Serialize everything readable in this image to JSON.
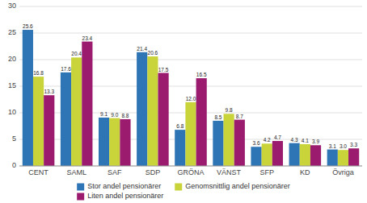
{
  "chart_data": {
    "type": "bar",
    "categories": [
      "CENT",
      "SAML",
      "SAF",
      "SDP",
      "GRÖNA",
      "VÄNST",
      "SFP",
      "KD",
      "Övriga"
    ],
    "series": [
      {
        "name": "Stor andel pensionärer",
        "color": "#2E75B6",
        "values": [
          25.6,
          17.6,
          9.1,
          21.4,
          6.8,
          8.5,
          3.6,
          4.3,
          3.1
        ],
        "value_labels": [
          "25.6",
          "17.6",
          "9.1",
          "21.4",
          "6.8",
          "8.5",
          "3.6",
          "4.3",
          "3.1"
        ]
      },
      {
        "name": "Genomsnittlig andel pensionärer",
        "color": "#C9D43A",
        "values": [
          16.8,
          20.4,
          9.0,
          20.6,
          12.0,
          9.8,
          4.2,
          4.1,
          3.0
        ],
        "value_labels": [
          "16.8",
          "20.4",
          "9.0",
          "20.6",
          "12.0",
          "9.8",
          "4.2",
          "4.1",
          "3.0"
        ]
      },
      {
        "name": "Liten andel pensionärer",
        "color": "#9B1B6E",
        "values": [
          13.3,
          23.4,
          8.8,
          17.5,
          16.5,
          8.7,
          4.7,
          3.9,
          3.3
        ],
        "value_labels": [
          "13.3",
          "23.4",
          "8.8",
          "17.5",
          "16.5",
          "8.7",
          "4.7",
          "3.9",
          "3.3"
        ]
      }
    ],
    "ylim": [
      0,
      30
    ],
    "yticks": [
      0,
      5,
      10,
      15,
      20,
      25,
      30
    ],
    "grid": true,
    "data_labels": true,
    "legend": "bottom"
  }
}
